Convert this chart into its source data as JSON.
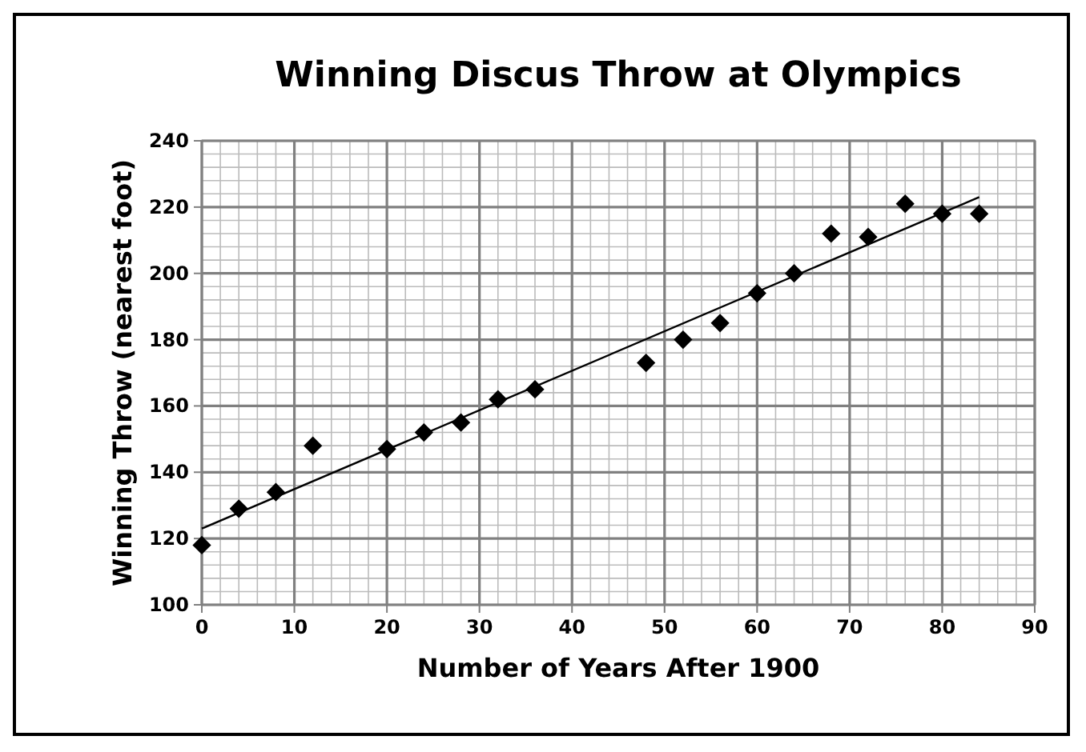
{
  "chart_data": {
    "type": "scatter",
    "title": "Winning Discus Throw at Olympics",
    "xlabel": "Number of Years After 1900",
    "ylabel": "Winning Throw (nearest foot)",
    "xlim": [
      0,
      90
    ],
    "xticks": [
      0,
      10,
      20,
      30,
      40,
      50,
      60,
      70,
      80,
      90
    ],
    "ylim": [
      100,
      240
    ],
    "yticks": [
      100,
      120,
      140,
      160,
      180,
      200,
      220,
      240
    ],
    "grid": true,
    "series": [
      {
        "color": "#000000",
        "marker": "diamond",
        "x": [
          0,
          4,
          8,
          12,
          20,
          24,
          28,
          32,
          36,
          48,
          52,
          56,
          60,
          64,
          68,
          72,
          76,
          80,
          84
        ],
        "values": [
          118,
          129,
          134,
          148,
          147,
          152,
          155,
          162,
          165,
          173,
          180,
          185,
          194,
          200,
          212,
          211,
          221,
          218,
          218
        ]
      },
      {
        "type": "line",
        "color": "#000000",
        "x": [
          0,
          84
        ],
        "values": [
          123,
          223
        ]
      }
    ]
  }
}
